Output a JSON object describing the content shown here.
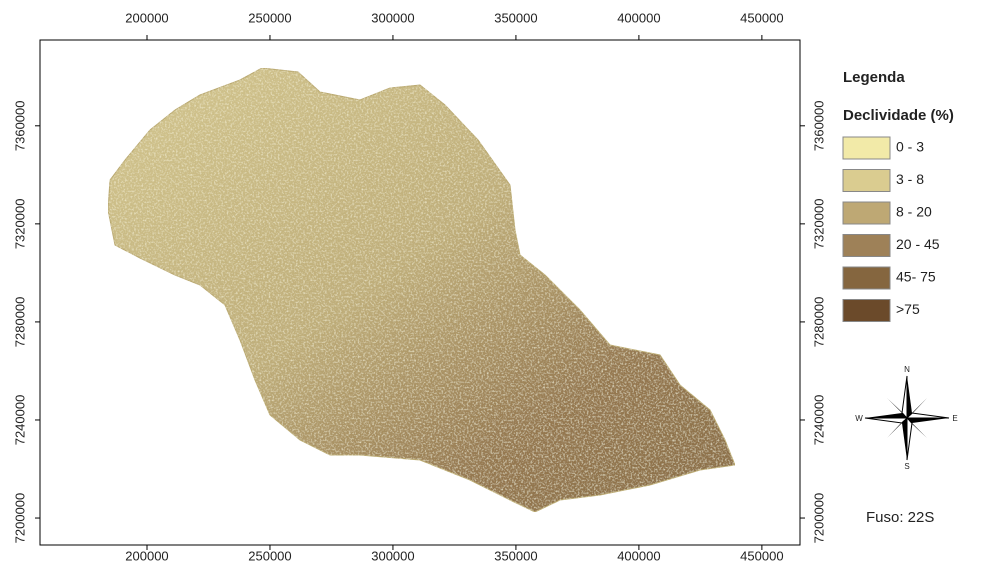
{
  "map": {
    "xlim": [
      156500,
      465500
    ],
    "ylim": [
      7189000,
      7395000
    ],
    "xticks": [
      200000,
      250000,
      300000,
      350000,
      400000,
      450000
    ],
    "yticks": [
      7200000,
      7240000,
      7280000,
      7320000,
      7360000
    ],
    "legend": {
      "title": "Legenda",
      "subtitle": "Declividade (%)",
      "items": [
        {
          "label": "0 - 3",
          "color": "#f2eaa8"
        },
        {
          "label": "3 - 8",
          "color": "#dacc90"
        },
        {
          "label": "8 - 20",
          "color": "#bea874"
        },
        {
          "label": "20 - 45",
          "color": "#9e8158"
        },
        {
          "label": "45- 75",
          "color": "#85663f"
        },
        {
          "label": ">75",
          "color": "#6b4a2a"
        }
      ]
    },
    "compass": {
      "n": "N",
      "s": "S",
      "e": "E",
      "w": "W"
    },
    "zone": "Fuso: 22S"
  }
}
